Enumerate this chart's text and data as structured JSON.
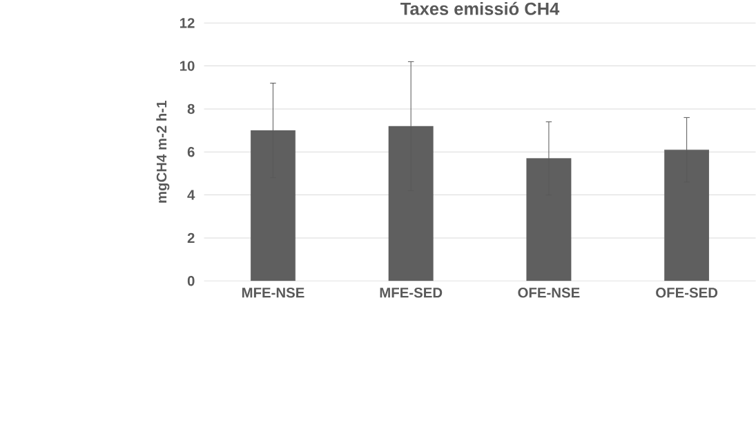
{
  "chart_data": {
    "type": "bar",
    "title": "Taxes emissió CH4",
    "ylabel": "mgCH4 m-2 h-1",
    "categories": [
      "MFE-NSE",
      "MFE-SED",
      "OFE-NSE",
      "OFE-SED"
    ],
    "values": [
      7.0,
      7.2,
      5.7,
      6.1
    ],
    "errors": [
      2.2,
      3.0,
      1.7,
      1.5
    ],
    "color": "#5f5f5f",
    "ylim": [
      0,
      12
    ],
    "yticks": [
      0,
      2,
      4,
      6,
      8,
      10,
      12
    ],
    "grid": "y"
  }
}
